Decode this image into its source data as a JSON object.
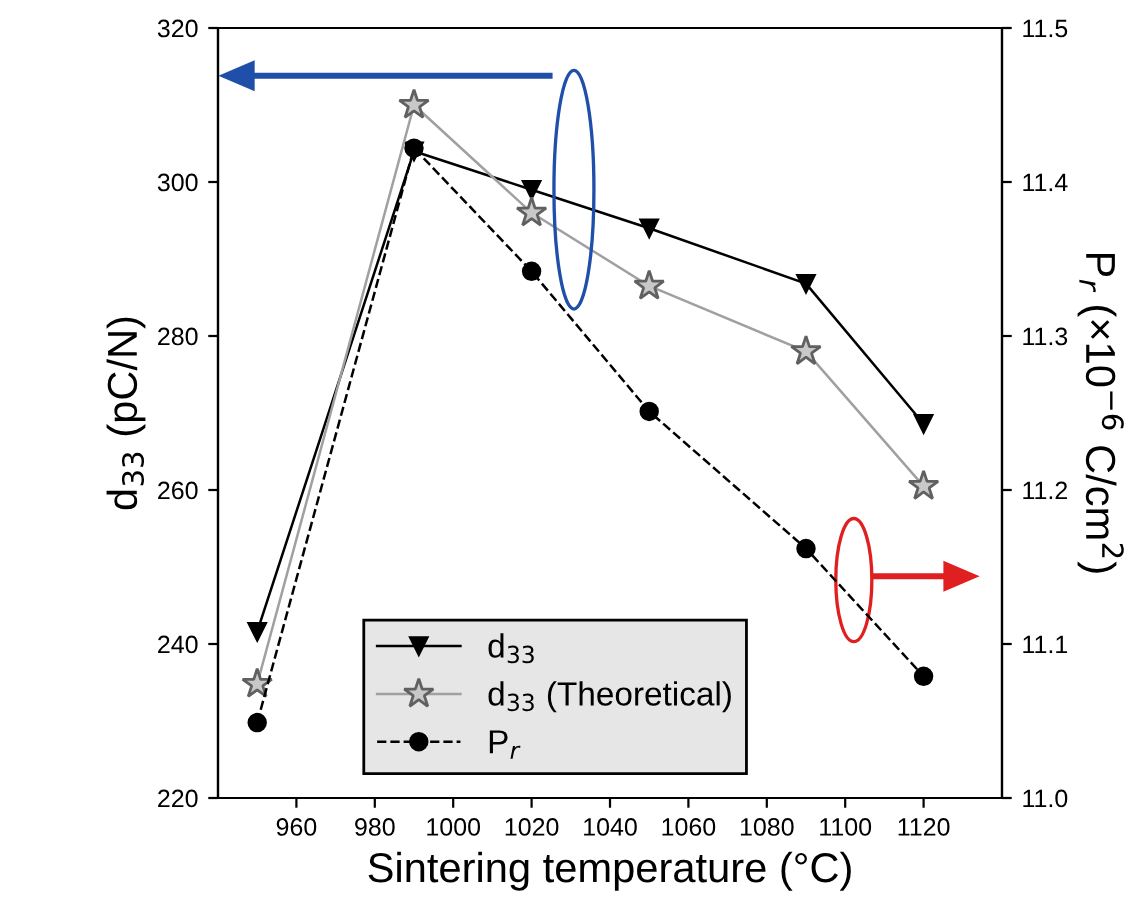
{
  "chart_data": {
    "type": "line",
    "xlabel": "Sintering temperature (°C)",
    "ylabel": "d$_{33}$ (pC/N)",
    "y2label": "P$_{r}$ (×10$^{−6}$ C/cm$^{2}$)",
    "x": [
      950,
      990,
      1020,
      1050,
      1090,
      1120
    ],
    "series": [
      {
        "name": "d$_{33}$",
        "color": "#000000",
        "marker": "triangle",
        "line_style": "solid",
        "values": [
          241.6,
          304,
          299,
          294,
          286.8,
          268.6
        ]
      },
      {
        "name": "d$_{33}$ (Theoretical)",
        "color": "#a0a0a0",
        "marker": "star",
        "line_style": "solid",
        "values": [
          234.8,
          310,
          296,
          286.5,
          278,
          260.5
        ]
      },
      {
        "name": "P$_{r}$",
        "color": "#000000",
        "marker": "circle",
        "line_style": "dashed",
        "axis": "y2",
        "values": [
          11.049,
          11.422,
          11.342,
          11.251,
          11.162,
          11.079
        ]
      }
    ],
    "xlim": [
      940,
      1140
    ],
    "xticks": [
      960,
      980,
      1000,
      1020,
      1040,
      1060,
      1080,
      1100,
      1120
    ],
    "ylim": [
      220,
      320
    ],
    "yticks": [
      220,
      240,
      260,
      280,
      300,
      320
    ],
    "y2lim": [
      11.0,
      11.5
    ],
    "y2ticks": [
      {
        "value": 11.0,
        "label": "11.0"
      },
      {
        "value": 11.1,
        "label": "11.1"
      },
      {
        "value": 11.2,
        "label": "11.2"
      },
      {
        "value": 11.3,
        "label": "11.3"
      },
      {
        "value": 11.4,
        "label": "11.4"
      },
      {
        "value": 11.5,
        "label": "11.5"
      }
    ],
    "grid": false,
    "legend": "bottom"
  }
}
